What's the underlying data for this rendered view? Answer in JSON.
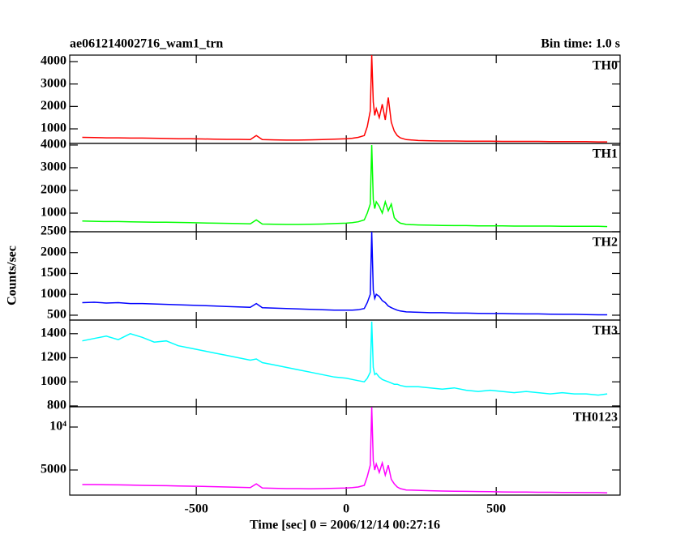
{
  "title": "ae061214002716_wam1_trn",
  "subtitle": "Bin time: 1.0 s",
  "ylabel": "Counts/sec",
  "chart_data": [
    {
      "type": "line",
      "xlim": [
        -922,
        913
      ],
      "xticks": [
        -500,
        0,
        500
      ],
      "ylim": [
        350,
        4290
      ],
      "yticks": [
        1000,
        2000,
        3000,
        4000
      ],
      "x": [
        -880,
        -840,
        -800,
        -760,
        -720,
        -680,
        -640,
        -600,
        -560,
        -520,
        -480,
        -440,
        -400,
        -360,
        -320,
        -300,
        -280,
        -240,
        -200,
        -160,
        -120,
        -80,
        -40,
        0,
        20,
        40,
        60,
        70,
        80,
        85,
        90,
        95,
        100,
        110,
        120,
        130,
        140,
        150,
        160,
        170,
        180,
        200,
        240,
        280,
        320,
        360,
        400,
        440,
        480,
        520,
        560,
        600,
        640,
        680,
        720,
        760,
        800,
        840,
        870
      ],
      "series": [
        {
          "name": "TH0",
          "color": "#ff0000",
          "values": [
            620,
            610,
            600,
            600,
            590,
            590,
            580,
            570,
            560,
            560,
            550,
            540,
            530,
            530,
            520,
            700,
            520,
            510,
            500,
            500,
            510,
            520,
            540,
            560,
            580,
            620,
            700,
            1100,
            1800,
            4290,
            2200,
            1600,
            1900,
            1500,
            2100,
            1400,
            2400,
            1300,
            900,
            700,
            600,
            520,
            480,
            470,
            460,
            460,
            450,
            450,
            450,
            440,
            440,
            440,
            440,
            430,
            430,
            430,
            430,
            420,
            420
          ]
        }
      ]
    },
    {
      "type": "line",
      "xlim": [
        -922,
        913
      ],
      "xticks": [
        -500,
        0,
        500
      ],
      "ylim": [
        180,
        4070
      ],
      "yticks": [
        1000,
        2000,
        3000,
        4000
      ],
      "x": [
        -880,
        -840,
        -800,
        -760,
        -720,
        -680,
        -640,
        -600,
        -560,
        -520,
        -480,
        -440,
        -400,
        -360,
        -320,
        -300,
        -280,
        -240,
        -200,
        -160,
        -120,
        -80,
        -40,
        0,
        20,
        40,
        60,
        70,
        80,
        85,
        90,
        95,
        100,
        110,
        120,
        130,
        140,
        150,
        160,
        170,
        180,
        200,
        240,
        280,
        320,
        360,
        400,
        440,
        480,
        520,
        560,
        600,
        640,
        680,
        720,
        760,
        800,
        840,
        870
      ],
      "series": [
        {
          "name": "TH1",
          "color": "#00ff00",
          "values": [
            650,
            640,
            630,
            630,
            620,
            610,
            600,
            600,
            590,
            580,
            570,
            560,
            550,
            540,
            530,
            700,
            520,
            510,
            500,
            500,
            510,
            520,
            540,
            560,
            580,
            620,
            700,
            1000,
            1400,
            4000,
            1600,
            1200,
            1500,
            1300,
            1000,
            1500,
            1100,
            1400,
            800,
            650,
            560,
            500,
            480,
            470,
            460,
            450,
            450,
            440,
            440,
            440,
            430,
            430,
            430,
            430,
            420,
            420,
            420,
            420,
            410
          ]
        }
      ]
    },
    {
      "type": "line",
      "xlim": [
        -922,
        913
      ],
      "xticks": [
        -500,
        0,
        500
      ],
      "ylim": [
        383,
        2500
      ],
      "yticks": [
        500,
        1000,
        1500,
        2000,
        2500
      ],
      "x": [
        -880,
        -840,
        -800,
        -760,
        -720,
        -680,
        -640,
        -600,
        -560,
        -520,
        -480,
        -440,
        -400,
        -360,
        -320,
        -300,
        -280,
        -240,
        -200,
        -160,
        -120,
        -80,
        -40,
        0,
        20,
        40,
        60,
        70,
        80,
        85,
        90,
        95,
        100,
        110,
        120,
        130,
        140,
        150,
        160,
        170,
        180,
        200,
        240,
        280,
        320,
        360,
        400,
        440,
        480,
        520,
        560,
        600,
        640,
        680,
        720,
        760,
        800,
        840,
        870
      ],
      "series": [
        {
          "name": "TH2",
          "color": "#0000ff",
          "values": [
            800,
            810,
            790,
            800,
            780,
            780,
            770,
            760,
            750,
            740,
            730,
            720,
            710,
            700,
            690,
            780,
            680,
            670,
            660,
            650,
            640,
            630,
            620,
            620,
            620,
            630,
            660,
            800,
            1000,
            2500,
            1100,
            900,
            1000,
            950,
            850,
            800,
            720,
            680,
            650,
            620,
            600,
            580,
            570,
            560,
            560,
            550,
            550,
            545,
            540,
            540,
            535,
            530,
            530,
            525,
            520,
            520,
            515,
            510,
            510
          ]
        }
      ]
    },
    {
      "type": "line",
      "xlim": [
        -922,
        913
      ],
      "xticks": [
        -500,
        0,
        500
      ],
      "ylim": [
        793,
        1513
      ],
      "yticks": [
        800,
        1000,
        1200,
        1400
      ],
      "x": [
        -880,
        -840,
        -800,
        -760,
        -720,
        -680,
        -640,
        -600,
        -560,
        -520,
        -480,
        -440,
        -400,
        -360,
        -320,
        -300,
        -280,
        -240,
        -200,
        -160,
        -120,
        -80,
        -40,
        0,
        20,
        40,
        60,
        70,
        80,
        85,
        90,
        95,
        100,
        110,
        120,
        130,
        140,
        150,
        160,
        170,
        180,
        200,
        240,
        280,
        320,
        360,
        400,
        440,
        480,
        520,
        560,
        600,
        640,
        680,
        720,
        760,
        800,
        840,
        870
      ],
      "series": [
        {
          "name": "TH3",
          "color": "#00ffff",
          "values": [
            1340,
            1360,
            1380,
            1350,
            1400,
            1370,
            1330,
            1340,
            1300,
            1280,
            1260,
            1240,
            1220,
            1200,
            1180,
            1190,
            1160,
            1140,
            1120,
            1100,
            1080,
            1060,
            1040,
            1030,
            1020,
            1010,
            1000,
            1030,
            1080,
            1500,
            1120,
            1060,
            1070,
            1040,
            1020,
            1010,
            1000,
            990,
            980,
            980,
            970,
            960,
            960,
            950,
            940,
            950,
            930,
            920,
            930,
            920,
            910,
            920,
            910,
            900,
            910,
            900,
            900,
            890,
            900
          ]
        }
      ]
    },
    {
      "type": "line",
      "log": true,
      "xlim": [
        -922,
        913
      ],
      "xticks": [
        -500,
        0,
        500
      ],
      "ylim": [
        3334,
        13870
      ],
      "yticks": [
        5000,
        {
          "value": 10000,
          "label": "10⁴"
        }
      ],
      "xlabel": "Time [sec] 0 = 2006/12/14 00:27:16",
      "x": [
        -880,
        -840,
        -800,
        -760,
        -720,
        -680,
        -640,
        -600,
        -560,
        -520,
        -480,
        -440,
        -400,
        -360,
        -320,
        -300,
        -280,
        -240,
        -200,
        -160,
        -120,
        -80,
        -40,
        0,
        20,
        40,
        60,
        70,
        80,
        85,
        90,
        95,
        100,
        110,
        120,
        130,
        140,
        150,
        160,
        170,
        180,
        200,
        240,
        280,
        320,
        360,
        400,
        440,
        480,
        520,
        560,
        600,
        640,
        680,
        720,
        760,
        800,
        840,
        870
      ],
      "series": [
        {
          "name": "TH0123",
          "color": "#ff00ff",
          "values": [
            3950,
            3950,
            3940,
            3930,
            3920,
            3900,
            3890,
            3880,
            3860,
            3850,
            3840,
            3820,
            3800,
            3780,
            3760,
            4000,
            3740,
            3720,
            3700,
            3700,
            3690,
            3700,
            3720,
            3740,
            3760,
            3800,
            3900,
            4500,
            5400,
            13800,
            5800,
            5000,
            5500,
            4800,
            5600,
            4600,
            5400,
            4300,
            4000,
            3800,
            3700,
            3620,
            3600,
            3580,
            3560,
            3550,
            3540,
            3530,
            3520,
            3510,
            3500,
            3500,
            3490,
            3490,
            3480,
            3480,
            3470,
            3470,
            3460
          ]
        }
      ]
    }
  ]
}
